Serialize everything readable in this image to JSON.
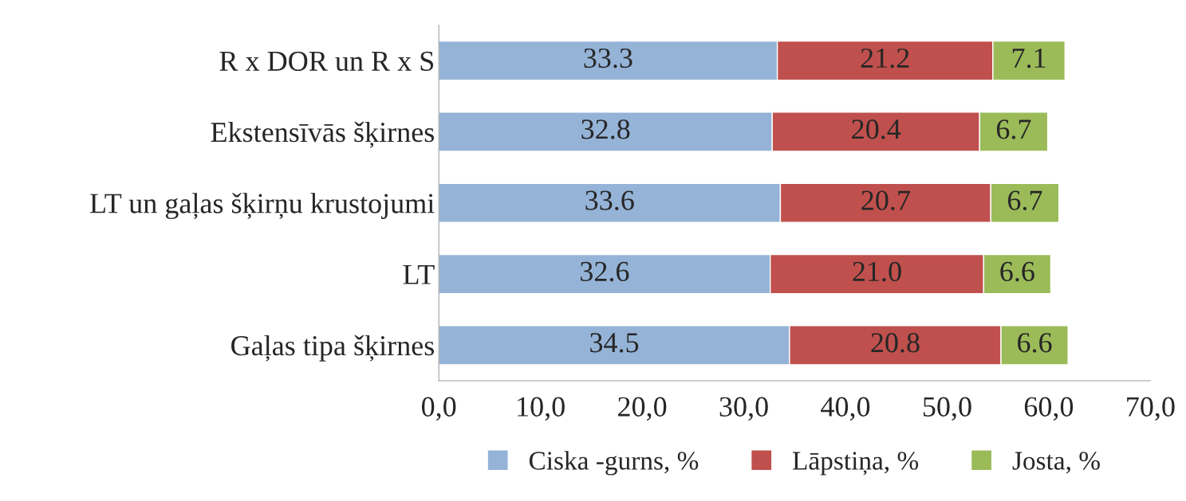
{
  "chart_data": {
    "type": "bar",
    "orientation": "horizontal",
    "stacked": true,
    "categories": [
      "R x DOR un R x S",
      "Ekstensīvās šķirnes",
      "LT un gaļas šķirņu krustojumi",
      "LT",
      "Gaļas tipa šķirnes"
    ],
    "series": [
      {
        "name": "Ciska -gurns, %",
        "color": "#95b3d7",
        "values": [
          33.3,
          32.8,
          33.6,
          32.6,
          34.5
        ],
        "value_labels": [
          "33.3",
          "32.8",
          "33.6",
          "32.6",
          "34.5"
        ]
      },
      {
        "name": "Lāpstiņa, %",
        "color": "#c0504d",
        "values": [
          21.2,
          20.4,
          20.7,
          21.0,
          20.8
        ],
        "value_labels": [
          "21.2",
          "20.4",
          "20.7",
          "21.0",
          "20.8"
        ]
      },
      {
        "name": "Josta, %",
        "color": "#9bbb59",
        "values": [
          7.1,
          6.7,
          6.7,
          6.6,
          6.6
        ],
        "value_labels": [
          "7.1",
          "6.7",
          "6.7",
          "6.6",
          "6.6"
        ]
      }
    ],
    "xlim": [
      0,
      70
    ],
    "xticks": [
      {
        "value": 0,
        "label": "0,0"
      },
      {
        "value": 10,
        "label": "10,0"
      },
      {
        "value": 20,
        "label": "20,0"
      },
      {
        "value": 30,
        "label": "30,0"
      },
      {
        "value": 40,
        "label": "40,0"
      },
      {
        "value": 50,
        "label": "50,0"
      },
      {
        "value": 60,
        "label": "60,0"
      },
      {
        "value": 70,
        "label": "70,0"
      }
    ],
    "grid": false,
    "legend": "bottom"
  }
}
